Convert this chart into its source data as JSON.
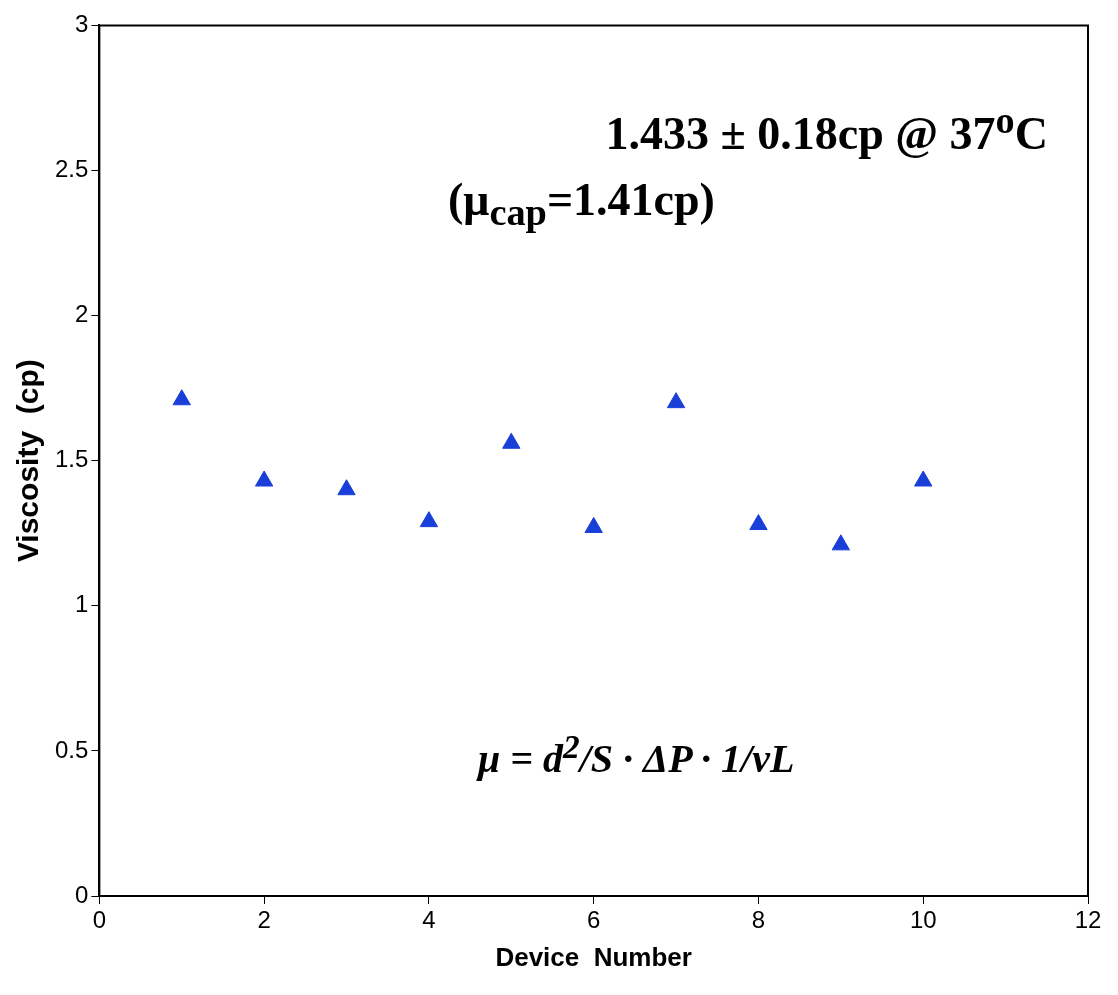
{
  "chart_data": {
    "type": "scatter",
    "xlabel": "Device  Number",
    "ylabel": "Viscosity  (cp)",
    "x": [
      1,
      2,
      3,
      4,
      5,
      6,
      7,
      8,
      9,
      10
    ],
    "series": [
      {
        "color": "#1a3fd8",
        "values": [
          1.71,
          1.43,
          1.4,
          1.29,
          1.56,
          1.27,
          1.7,
          1.28,
          1.21,
          1.43
        ]
      }
    ],
    "xlim": [
      0,
      12
    ],
    "xticks": [
      0,
      2,
      4,
      6,
      8,
      10,
      12
    ],
    "ylim": [
      0,
      3
    ],
    "yticks": [
      0,
      0.5,
      1,
      1.5,
      2,
      2.5,
      3
    ],
    "marker": "triangle",
    "grid": false,
    "legend": false,
    "annotations": [
      "1.433 ± 0.18cp @ 37$^{o}$C",
      "(μ$_{cap}$=1.41cp)",
      "μ = d$^{2}$/S · ΔP · 1/vL"
    ]
  }
}
